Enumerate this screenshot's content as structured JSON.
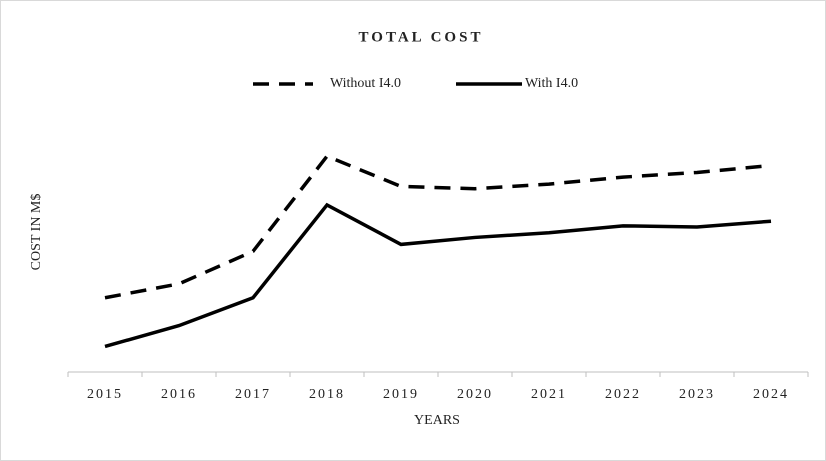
{
  "chart_data": {
    "type": "line",
    "title": "TOTAL COST",
    "x_label": "YEARS",
    "y_label": "COST IN M$",
    "categories": [
      "2015",
      "2016",
      "2017",
      "2018",
      "2019",
      "2020",
      "2021",
      "2022",
      "2023",
      "2024"
    ],
    "series": [
      {
        "name": "Without I4.0",
        "color": "#000000",
        "style": "dashed",
        "values": [
          32,
          38,
          52,
          93,
          80,
          79,
          81,
          84,
          86,
          89
        ]
      },
      {
        "name": "With I4.0",
        "color": "#000000",
        "style": "solid",
        "values": [
          11,
          20,
          32,
          72,
          55,
          58,
          60,
          63,
          62.5,
          65
        ]
      }
    ],
    "ylim": [
      0,
      100
    ],
    "legend": "top"
  }
}
